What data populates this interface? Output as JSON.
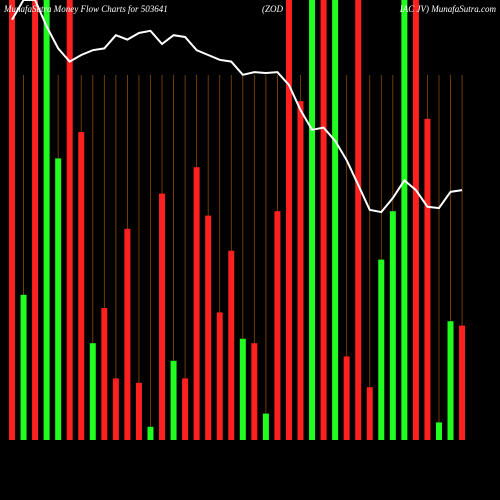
{
  "chart_data": {
    "type": "bar",
    "title_parts": [
      "MunafaSutra Money Flow Charts for 503641",
      "(ZOD",
      "IAC JV) MunafaSutra.com"
    ],
    "categories": [
      null,
      null,
      null,
      null,
      null,
      null,
      null,
      null,
      null,
      null,
      null,
      null,
      null,
      null,
      null,
      null,
      null,
      null,
      null,
      null,
      null,
      null,
      null,
      null,
      null,
      null,
      null,
      null,
      null,
      null,
      null,
      null,
      null,
      null,
      null,
      null,
      null,
      null,
      null,
      null
    ],
    "values": [
      100,
      33,
      100,
      100,
      64,
      100,
      70,
      22,
      30,
      14,
      48,
      13,
      3,
      56,
      18,
      14,
      62,
      51,
      29,
      43,
      23,
      22,
      6,
      52,
      100,
      77,
      100,
      100,
      100,
      19,
      100,
      12,
      41,
      52,
      100,
      100,
      73,
      4,
      27,
      26
    ],
    "bar_colors": [
      "#ff2020",
      "#20ff20",
      "#ff2020",
      "#20ff20",
      "#20ff20",
      "#ff2020",
      "#ff2020",
      "#20ff20",
      "#ff2020",
      "#ff2020",
      "#ff2020",
      "#ff2020",
      "#20ff20",
      "#ff2020",
      "#20ff20",
      "#ff2020",
      "#ff2020",
      "#ff2020",
      "#ff2020",
      "#ff2020",
      "#20ff20",
      "#ff2020",
      "#20ff20",
      "#ff2020",
      "#ff2020",
      "#ff2020",
      "#20ff20",
      "#ff2020",
      "#20ff20",
      "#ff2020",
      "#ff2020",
      "#ff2020",
      "#20ff20",
      "#20ff20",
      "#20ff20",
      "#ff2020",
      "#ff2020",
      "#20ff20",
      "#20ff20",
      "#ff2020"
    ],
    "line_values": [
      95.5,
      100,
      100,
      94,
      89,
      86,
      87.5,
      88.6,
      89,
      92,
      91,
      92.5,
      93,
      90,
      92,
      91.6,
      88.6,
      87.5,
      86.4,
      86,
      83,
      83.6,
      83.4,
      83.6,
      80.7,
      75,
      70.5,
      71,
      68,
      63.6,
      58,
      52.3,
      51.8,
      55,
      59,
      56.8,
      53,
      52.7,
      56.4,
      56.8
    ],
    "line_color": "#ffffff",
    "ylim": [
      0,
      100
    ]
  }
}
